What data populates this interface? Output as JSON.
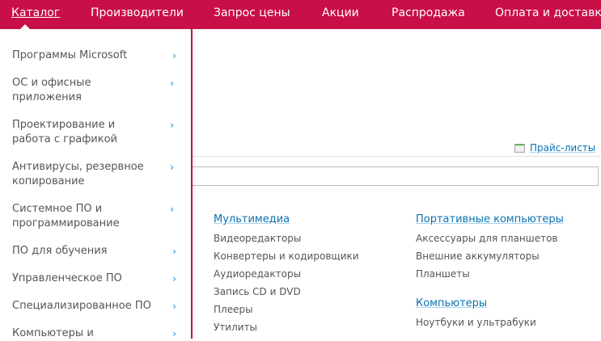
{
  "nav": {
    "items": [
      "Каталог",
      "Производители",
      "Запрос цены",
      "Акции",
      "Распродажа",
      "Оплата и доставка"
    ],
    "accent": "#c80f48"
  },
  "sidebar": {
    "items": [
      "Программы Microsoft",
      "ОС и офисные приложения",
      "Проектирование и работа с графикой",
      "Антивирусы, резервное копирование",
      "Системное ПО и программирование",
      "ПО для обучения",
      "Управленческое ПО",
      "Специализированное ПО",
      "Компьютеры и"
    ],
    "chevron": "›"
  },
  "pricelists": {
    "label": "Прайс-листы",
    "icon": "spreadsheet-icon"
  },
  "columns": [
    {
      "title": "Мультимедиа",
      "items": [
        "Видеоредакторы",
        "Конвертеры и кодировщики",
        "Аудиоредакторы",
        "Запись CD и DVD",
        "Плееры",
        "Утилиты"
      ]
    },
    {
      "title": "Портативные компьютеры",
      "items": [
        "Аксессуары для планшетов",
        "Внешние аккумуляторы",
        "Планшеты"
      ]
    },
    {
      "title": "Компьютеры",
      "items": [
        "Ноутбуки и ультрабуки"
      ]
    }
  ]
}
